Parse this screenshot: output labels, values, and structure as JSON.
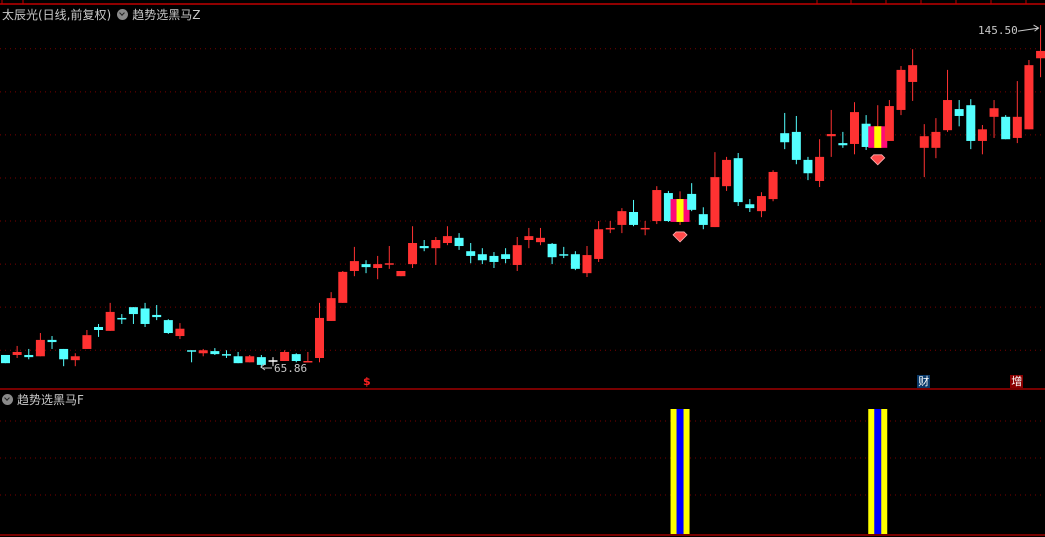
{
  "header": {
    "stock_title": "太辰光(日线,前复权)",
    "indicator_main": "趋势选黑马Z",
    "indicator_sub": "趋势选黑马F"
  },
  "colors": {
    "up": "#ff3232",
    "down": "#54ffff",
    "doji": "#ffffff",
    "grid": "#7a0000",
    "axis": "#c00000",
    "highlight_outer": "#ff0a78",
    "highlight_inner": "#ffff00",
    "sub_outer": "#ffff00",
    "sub_inner": "#0000ff",
    "gem": "#ff4a4a"
  },
  "annotations": {
    "high_label": "145.50",
    "low_label": "65.86"
  },
  "markers": [
    {
      "candle": 32,
      "text": "$",
      "style": "red-text"
    },
    {
      "candle": 80,
      "text": "财",
      "style": "blue-box"
    },
    {
      "candle": 88,
      "text": "增",
      "style": "red-box"
    }
  ],
  "chart_data": {
    "type": "candlestick",
    "ylim": [
      61.0,
      150.4
    ],
    "gridlines": [
      70,
      80,
      90,
      100,
      110,
      120,
      130,
      140
    ],
    "candle_fields": [
      "open",
      "close",
      "high",
      "low"
    ],
    "candles": [
      [
        68.9,
        67.0,
        68.9,
        67.0
      ],
      [
        68.9,
        69.6,
        71.0,
        68.2
      ],
      [
        68.9,
        68.4,
        70.3,
        67.9
      ],
      [
        68.6,
        72.4,
        74.0,
        68.6
      ],
      [
        72.4,
        71.9,
        73.3,
        70.3
      ],
      [
        70.3,
        67.9,
        70.3,
        66.3
      ],
      [
        67.7,
        68.6,
        69.3,
        66.3
      ],
      [
        70.3,
        73.5,
        74.7,
        70.3
      ],
      [
        75.4,
        74.7,
        76.1,
        73.1
      ],
      [
        74.5,
        78.9,
        81.0,
        74.5
      ],
      [
        77.5,
        77.2,
        78.4,
        76.1
      ],
      [
        80.0,
        78.4,
        80.0,
        76.1
      ],
      [
        79.7,
        76.1,
        81.0,
        75.4
      ],
      [
        78.2,
        77.7,
        80.5,
        77.0
      ],
      [
        77.0,
        74.0,
        77.2,
        73.8
      ],
      [
        73.3,
        75.0,
        76.3,
        72.6
      ],
      [
        70.0,
        69.8,
        70.0,
        67.2
      ],
      [
        69.3,
        70.0,
        70.3,
        68.6
      ],
      [
        69.8,
        69.1,
        70.5,
        68.9
      ],
      [
        69.1,
        68.9,
        70.0,
        68.2
      ],
      [
        68.6,
        67.0,
        69.6,
        67.0
      ],
      [
        67.2,
        68.6,
        68.9,
        67.2
      ],
      [
        68.4,
        66.6,
        68.9,
        65.86
      ],
      [
        67.5,
        67.5,
        68.4,
        66.3
      ],
      [
        67.5,
        69.6,
        70.0,
        67.5
      ],
      [
        69.1,
        67.5,
        69.3,
        67.2
      ],
      [
        67.2,
        67.5,
        69.6,
        67.2
      ],
      [
        68.2,
        77.5,
        81.0,
        67.2
      ],
      [
        76.8,
        82.1,
        83.5,
        76.8
      ],
      [
        81.0,
        88.2,
        88.4,
        81.0
      ],
      [
        88.4,
        90.7,
        94.0,
        87.2
      ],
      [
        90.0,
        89.3,
        90.9,
        87.9
      ],
      [
        89.1,
        90.0,
        91.9,
        86.5
      ],
      [
        90.0,
        90.2,
        94.2,
        88.9
      ],
      [
        87.2,
        88.4,
        88.4,
        87.2
      ],
      [
        90.0,
        94.9,
        98.8,
        89.1
      ],
      [
        94.2,
        93.7,
        95.6,
        93.0
      ],
      [
        93.7,
        95.6,
        96.3,
        89.8
      ],
      [
        94.9,
        96.5,
        98.8,
        94.4
      ],
      [
        96.1,
        94.2,
        97.2,
        93.3
      ],
      [
        93.0,
        91.9,
        94.9,
        90.2
      ],
      [
        92.3,
        90.9,
        93.7,
        90.0
      ],
      [
        91.9,
        90.5,
        92.8,
        89.1
      ],
      [
        92.3,
        91.2,
        93.7,
        90.2
      ],
      [
        89.8,
        94.4,
        96.3,
        88.4
      ],
      [
        95.6,
        96.5,
        98.4,
        93.7
      ],
      [
        95.1,
        96.1,
        98.4,
        94.4
      ],
      [
        94.7,
        91.6,
        94.9,
        90.0
      ],
      [
        92.3,
        92.1,
        94.0,
        91.4
      ],
      [
        92.3,
        88.9,
        93.0,
        88.6
      ],
      [
        87.9,
        92.1,
        94.2,
        87.0
      ],
      [
        91.2,
        98.1,
        100.0,
        90.5
      ],
      [
        98.3,
        98.4,
        100.0,
        97.2
      ],
      [
        99.1,
        102.3,
        103.0,
        97.2
      ],
      [
        102.1,
        99.1,
        104.9,
        98.8
      ],
      [
        98.3,
        98.4,
        100.0,
        96.7
      ],
      [
        100.0,
        107.2,
        108.1,
        99.3
      ],
      [
        106.5,
        100.0,
        107.0,
        99.8
      ],
      [
        99.8,
        105.1,
        106.9,
        99.1
      ],
      [
        106.3,
        102.6,
        108.8,
        102.3
      ],
      [
        101.6,
        99.1,
        103.2,
        98.1
      ],
      [
        98.6,
        110.2,
        116.0,
        98.6
      ],
      [
        108.1,
        114.2,
        114.9,
        107.0
      ],
      [
        114.6,
        104.4,
        115.8,
        103.5
      ],
      [
        103.9,
        103.0,
        105.1,
        102.1
      ],
      [
        102.3,
        105.8,
        106.7,
        100.9
      ],
      [
        105.1,
        111.4,
        111.8,
        104.6
      ],
      [
        120.4,
        118.3,
        125.1,
        116.7
      ],
      [
        120.7,
        114.2,
        124.4,
        113.2
      ],
      [
        114.2,
        111.1,
        114.9,
        109.5
      ],
      [
        109.3,
        114.9,
        119.0,
        107.9
      ],
      [
        119.7,
        120.2,
        125.8,
        114.9
      ],
      [
        118.1,
        117.6,
        120.7,
        117.0
      ],
      [
        117.9,
        125.3,
        127.6,
        115.5
      ],
      [
        122.6,
        117.2,
        124.6,
        116.5
      ],
      [
        117.0,
        122.0,
        126.9,
        117.0
      ],
      [
        118.6,
        126.7,
        128.1,
        118.6
      ],
      [
        125.8,
        135.1,
        136.0,
        124.6
      ],
      [
        132.3,
        136.2,
        139.9,
        127.9
      ],
      [
        117.0,
        119.7,
        122.5,
        110.2
      ],
      [
        117.0,
        120.7,
        123.9,
        114.6
      ],
      [
        121.1,
        128.1,
        135.1,
        120.7
      ],
      [
        126.0,
        124.4,
        128.1,
        122.0
      ],
      [
        126.9,
        118.6,
        128.3,
        116.7
      ],
      [
        118.6,
        121.3,
        122.3,
        115.5
      ],
      [
        124.2,
        126.2,
        128.1,
        119.3
      ],
      [
        124.2,
        119.0,
        124.6,
        119.0
      ],
      [
        119.3,
        124.2,
        132.5,
        118.1
      ],
      [
        121.3,
        136.2,
        137.4,
        121.3
      ],
      [
        137.8,
        139.5,
        145.5,
        133.4
      ]
    ],
    "signal_candles": [
      59,
      76
    ],
    "sub_indicator": {
      "type": "bar",
      "ylim": [
        0,
        1
      ],
      "signal_value": 1,
      "gridlines": 3
    }
  }
}
